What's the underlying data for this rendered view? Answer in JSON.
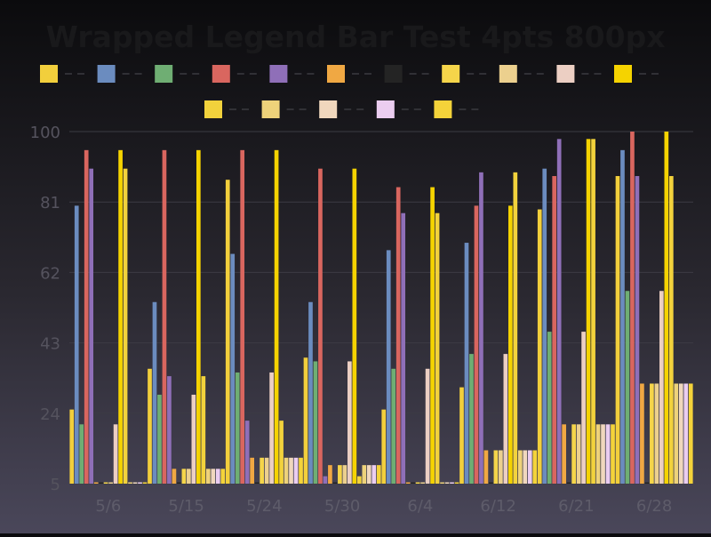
{
  "chart_data": {
    "type": "bar",
    "title": "Wrapped Legend Bar Test 4pts 800px",
    "xlabel": "",
    "ylabel": "",
    "ylim": [
      5,
      100
    ],
    "y_ticks": [
      5,
      24,
      43,
      62,
      81,
      100
    ],
    "grid": true,
    "legend_placement": "top",
    "categories": [
      "5/6",
      "5/15",
      "5/24",
      "5/30",
      "6/4",
      "6/12",
      "6/21",
      "6/28"
    ],
    "series": [
      {
        "color": "#f2cf3c",
        "values": [
          25,
          36,
          87,
          39,
          25,
          31,
          79,
          88
        ]
      },
      {
        "color": "#6b8cbf",
        "values": [
          80,
          54,
          67,
          54,
          68,
          70,
          90,
          95
        ]
      },
      {
        "color": "#6fae73",
        "values": [
          21,
          29,
          35,
          38,
          36,
          40,
          46,
          57
        ]
      },
      {
        "color": "#d9665f",
        "values": [
          95,
          95,
          95,
          90,
          85,
          80,
          88,
          100
        ]
      },
      {
        "color": "#8f6fb8",
        "values": [
          90,
          34,
          22,
          7,
          78,
          89,
          98,
          88
        ]
      },
      {
        "color": "#f0a843",
        "values": [
          5,
          9,
          12,
          10,
          5,
          14,
          21,
          32
        ]
      },
      {
        "color": "#242424",
        "values": [
          5,
          5,
          5,
          5,
          5,
          5,
          5,
          5
        ]
      },
      {
        "color": "#f5d54a",
        "values": [
          5,
          9,
          12,
          10,
          5,
          14,
          21,
          32
        ]
      },
      {
        "color": "#ecd08e",
        "values": [
          5,
          9,
          12,
          10,
          5,
          14,
          21,
          32
        ]
      },
      {
        "color": "#eccfc3",
        "values": [
          21,
          29,
          35,
          38,
          36,
          40,
          46,
          57
        ]
      },
      {
        "color": "#f5d300",
        "values": [
          95,
          95,
          95,
          90,
          85,
          80,
          98,
          100
        ]
      },
      {
        "color": "#f2d23c",
        "values": [
          90,
          34,
          22,
          7,
          78,
          89,
          98,
          88
        ]
      },
      {
        "color": "#eed27a",
        "values": [
          5,
          9,
          12,
          10,
          5,
          14,
          21,
          32
        ]
      },
      {
        "color": "#f0d7bd",
        "values": [
          5,
          9,
          12,
          10,
          5,
          14,
          21,
          32
        ]
      },
      {
        "color": "#ebcdf0",
        "values": [
          5,
          9,
          12,
          10,
          5,
          14,
          21,
          32
        ]
      },
      {
        "color": "#f4d33a",
        "values": [
          5,
          9,
          12,
          10,
          5,
          14,
          21,
          32
        ]
      }
    ]
  }
}
